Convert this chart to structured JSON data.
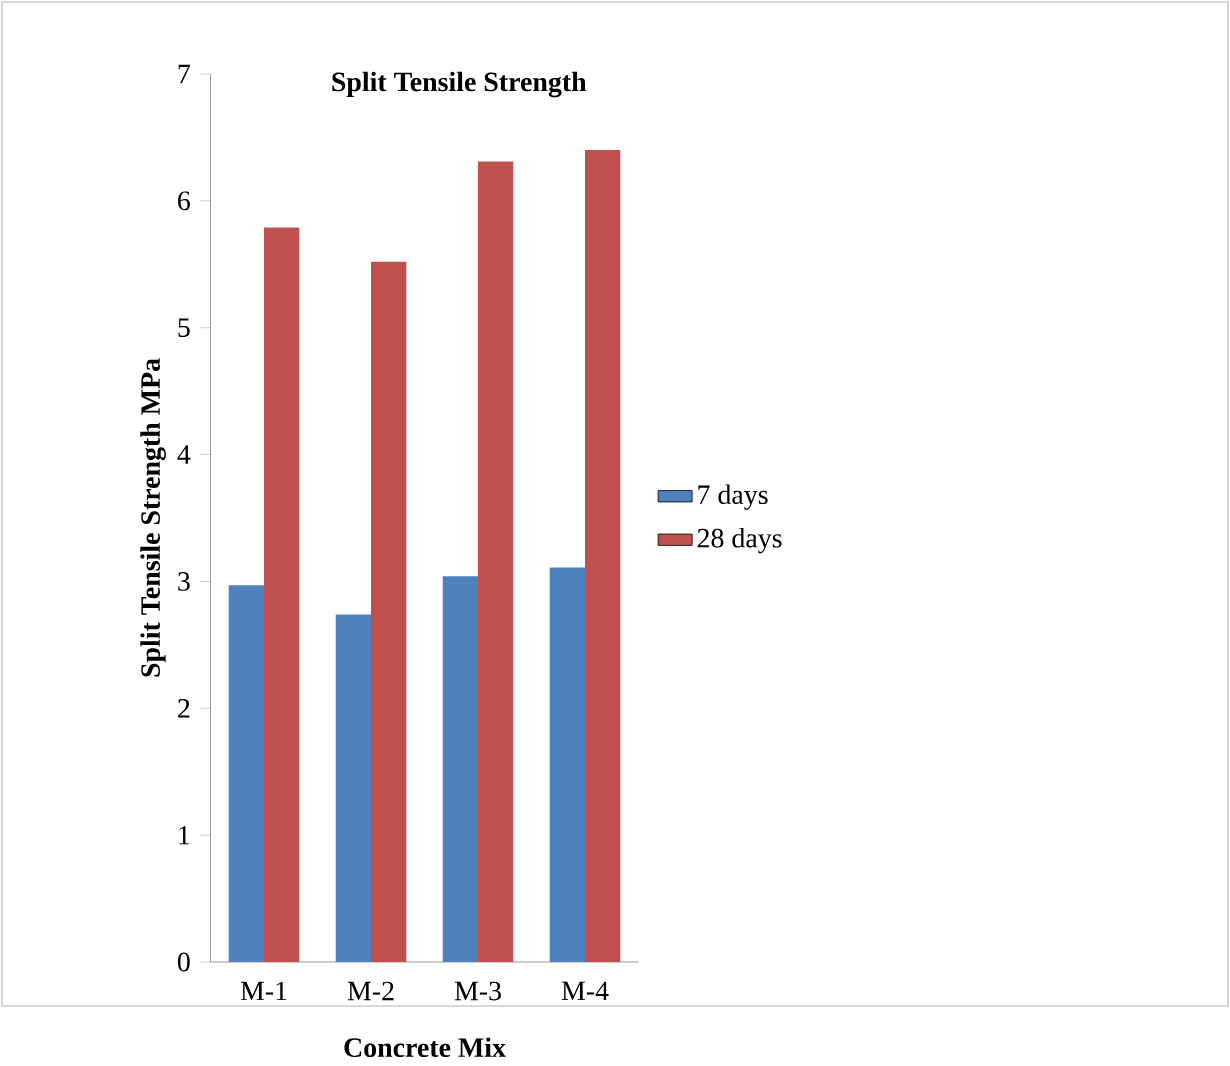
{
  "chart_data": {
    "type": "bar",
    "title": "Split Tensile Strength",
    "xlabel": "Concrete Mix",
    "ylabel": "Split Tensile Strength MPa",
    "categories": [
      "M-1",
      "M-2",
      "M-3",
      "M-4"
    ],
    "series": [
      {
        "name": "7 days",
        "color": "#4f81bd",
        "values": [
          2.97,
          2.74,
          3.04,
          3.11
        ]
      },
      {
        "name": "28 days",
        "color": "#c0504d",
        "values": [
          5.79,
          5.52,
          6.31,
          6.4
        ]
      }
    ],
    "ylim": [
      0,
      7
    ],
    "yticks": [
      0,
      1,
      2,
      3,
      4,
      5,
      6,
      7
    ],
    "legend": "right"
  }
}
